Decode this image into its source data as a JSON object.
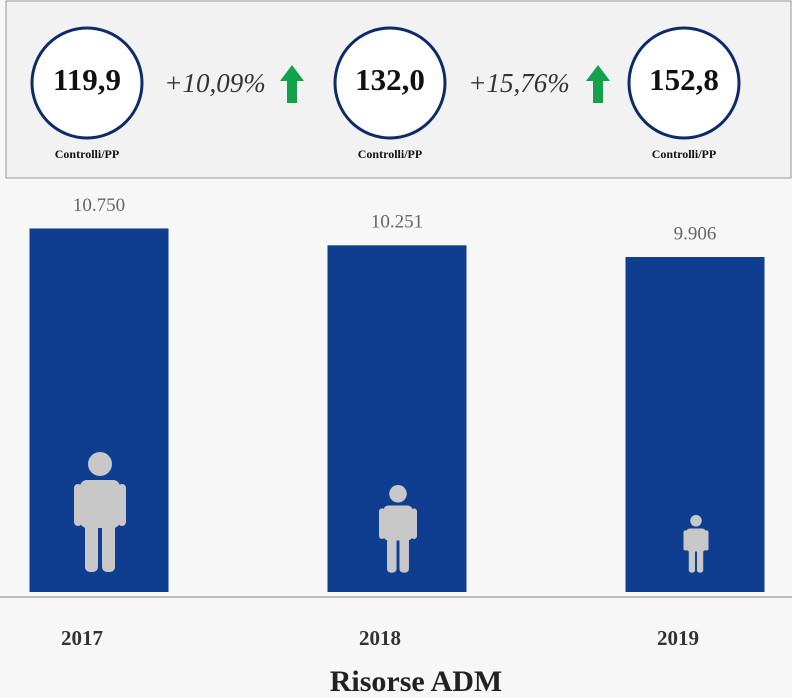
{
  "header": {
    "kpis": [
      {
        "value": "119,9",
        "label": "Controlli/PP"
      },
      {
        "value": "132,0",
        "label": "Controlli/PP"
      },
      {
        "value": "152,8",
        "label": "Controlli/PP"
      }
    ],
    "changes": [
      "+10,09%",
      "+15,76%"
    ]
  },
  "chart_data": {
    "type": "bar",
    "title": "Risorse ADM",
    "categories": [
      "2017",
      "2018",
      "2019"
    ],
    "values": [
      10750,
      10251,
      9906
    ],
    "value_labels": [
      "10.750",
      "10.251",
      "9.906"
    ],
    "color": "#0f3d8f",
    "ylim": [
      0,
      11000
    ]
  }
}
